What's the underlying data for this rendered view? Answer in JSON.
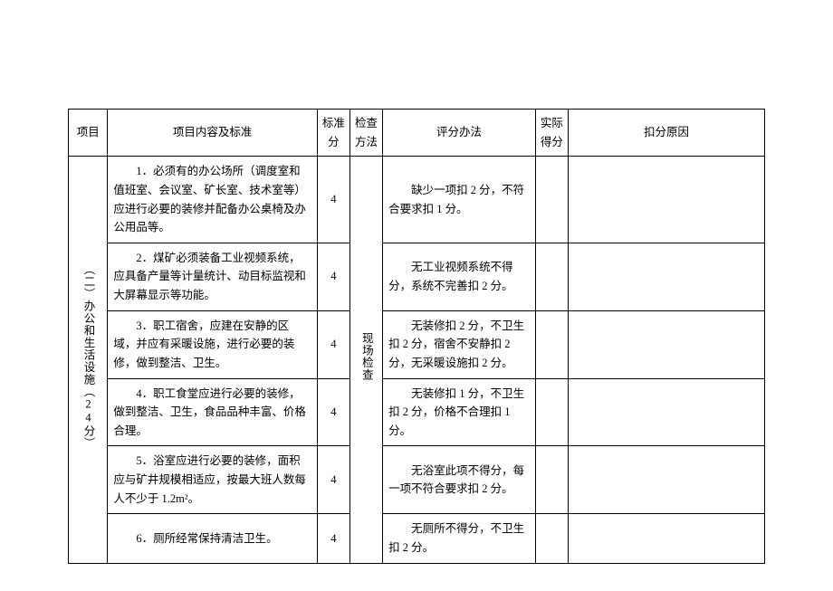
{
  "table": {
    "border_color": "#000000",
    "background_color": "#ffffff",
    "text_color": "#000000",
    "font_family": "SimSun",
    "font_size_pt": 10,
    "headers": {
      "project": "项目",
      "content": "项目内容及标准",
      "standard_score": "标准分",
      "check_method": "检查方法",
      "scoring_method": "评分办法",
      "actual_score": "实际得分",
      "deduction_reason": "扣分原因"
    },
    "project_label": "（二）办公和生活设施（24分）",
    "check_method_value": "现场检查",
    "rows": [
      {
        "content": "1．必须有的办公场所（调度室和值班室、会议室、矿长室、技术室等）应进行必要的装修并配备办公桌椅及办公用品等。",
        "standard_score": "4",
        "scoring": "缺少一项扣 2 分，不符合要求扣 1 分。",
        "actual_score": "",
        "reason": ""
      },
      {
        "content": "2．煤矿必须装备工业视频系统，应具备产量等计量统计、动目标监视和大屏幕显示等功能。",
        "standard_score": "4",
        "scoring": "无工业视频系统不得分，系统不完善扣 2 分。",
        "actual_score": "",
        "reason": ""
      },
      {
        "content": "3．职工宿舍，应建在安静的区域，并应有采暖设施，进行必要的装修，做到整洁、卫生。",
        "standard_score": "4",
        "scoring": "无装修扣 2 分，不卫生扣 2 分，宿舍不安静扣 2 分，无采暖设施扣 2 分。",
        "actual_score": "",
        "reason": ""
      },
      {
        "content": "4．职工食堂应进行必要的装修，做到整洁、卫生，食品品种丰富、价格合理。",
        "standard_score": "4",
        "scoring": "无装修扣 1 分，不卫生扣 2 分，价格不合理扣 1 分。",
        "actual_score": "",
        "reason": ""
      },
      {
        "content": "5．浴室应进行必要的装修，面积应与矿井规模相适应，按最大班人数每人不少于 1.2m²。",
        "standard_score": "4",
        "scoring": "无浴室此项不得分，每一项不符合要求扣 2 分。",
        "actual_score": "",
        "reason": ""
      },
      {
        "content": "6．厕所经常保持清洁卫生。",
        "standard_score": "4",
        "scoring": "无厕所不得分，不卫生扣 2 分。",
        "actual_score": "",
        "reason": ""
      }
    ]
  }
}
